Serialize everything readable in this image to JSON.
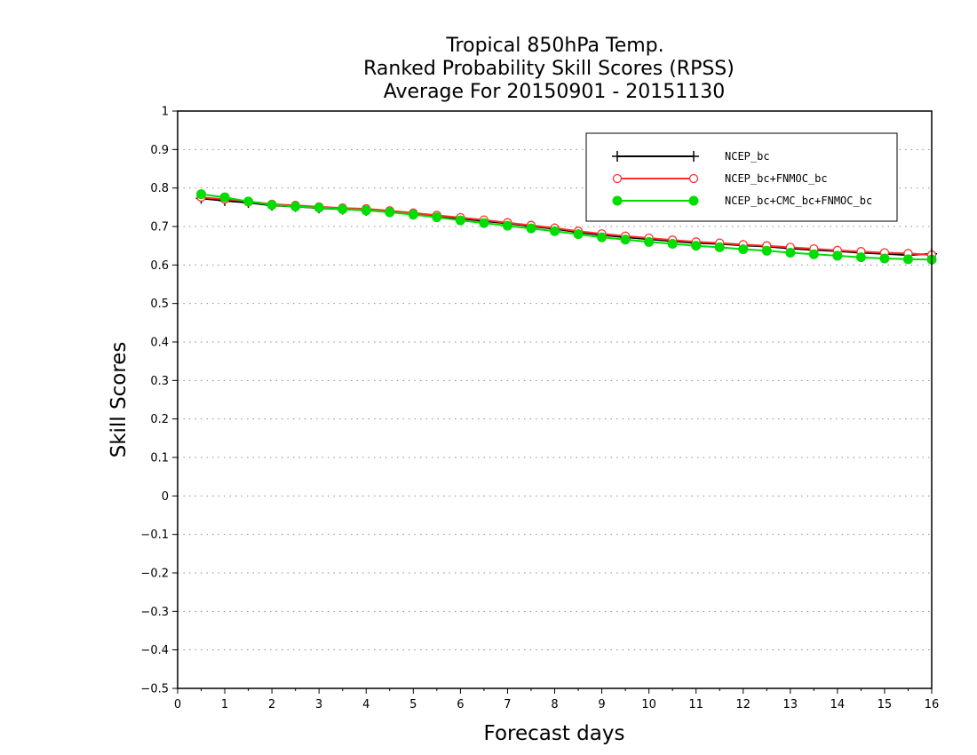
{
  "chart_data": {
    "type": "line",
    "title_lines": [
      "Tropical 850hPa Temp.",
      "Ranked Probability Skill Scores (RPSS)",
      "Average For 20150901 - 20151130"
    ],
    "xlabel": "Forecast days",
    "ylabel": "Skill Scores",
    "xlim": [
      0,
      16
    ],
    "ylim": [
      -0.5,
      1
    ],
    "x_ticks": [
      "0",
      "1",
      "2",
      "3",
      "4",
      "5",
      "6",
      "7",
      "8",
      "9",
      "10",
      "11",
      "12",
      "13",
      "14",
      "15",
      "16"
    ],
    "y_ticks": [
      "1",
      "0.9",
      "0.8",
      "0.7",
      "0.6",
      "0.5",
      "0.4",
      "0.3",
      "0.2",
      "0.1",
      "0",
      "−0.1",
      "−0.2",
      "−0.3",
      "−0.4",
      "−0.5"
    ],
    "grid": "dotted horizontal",
    "legend_position": "top-right",
    "x": [
      0.5,
      1,
      1.5,
      2,
      2.5,
      3,
      3.5,
      4,
      4.5,
      5,
      5.5,
      6,
      6.5,
      7,
      7.5,
      8,
      8.5,
      9,
      9.5,
      10,
      10.5,
      11,
      11.5,
      12,
      12.5,
      13,
      13.5,
      14,
      14.5,
      15,
      15.5,
      16
    ],
    "series": [
      {
        "name": "NCEP_bc",
        "color": "#000000",
        "marker": "plus",
        "values": [
          0.773,
          0.767,
          0.762,
          0.755,
          0.752,
          0.748,
          0.745,
          0.742,
          0.738,
          0.732,
          0.726,
          0.721,
          0.714,
          0.708,
          0.701,
          0.694,
          0.685,
          0.678,
          0.672,
          0.667,
          0.662,
          0.657,
          0.655,
          0.651,
          0.648,
          0.643,
          0.639,
          0.636,
          0.632,
          0.629,
          0.626,
          0.629
        ]
      },
      {
        "name": "NCEP_bc+FNMOC_bc",
        "color": "#ff3030",
        "marker": "open-circle",
        "values": [
          0.776,
          0.771,
          0.765,
          0.758,
          0.755,
          0.751,
          0.748,
          0.746,
          0.741,
          0.735,
          0.729,
          0.723,
          0.717,
          0.71,
          0.703,
          0.696,
          0.688,
          0.681,
          0.675,
          0.67,
          0.665,
          0.66,
          0.657,
          0.653,
          0.65,
          0.646,
          0.642,
          0.638,
          0.635,
          0.632,
          0.63,
          0.626
        ]
      },
      {
        "name": "NCEP_bc+CMC_bc+FNMOC_bc",
        "color": "#00dd00",
        "marker": "filled-circle",
        "values": [
          0.784,
          0.776,
          0.765,
          0.756,
          0.752,
          0.749,
          0.745,
          0.742,
          0.737,
          0.731,
          0.724,
          0.716,
          0.709,
          0.702,
          0.695,
          0.688,
          0.68,
          0.672,
          0.666,
          0.66,
          0.655,
          0.65,
          0.646,
          0.641,
          0.637,
          0.632,
          0.628,
          0.624,
          0.62,
          0.617,
          0.615,
          0.614
        ]
      }
    ]
  }
}
